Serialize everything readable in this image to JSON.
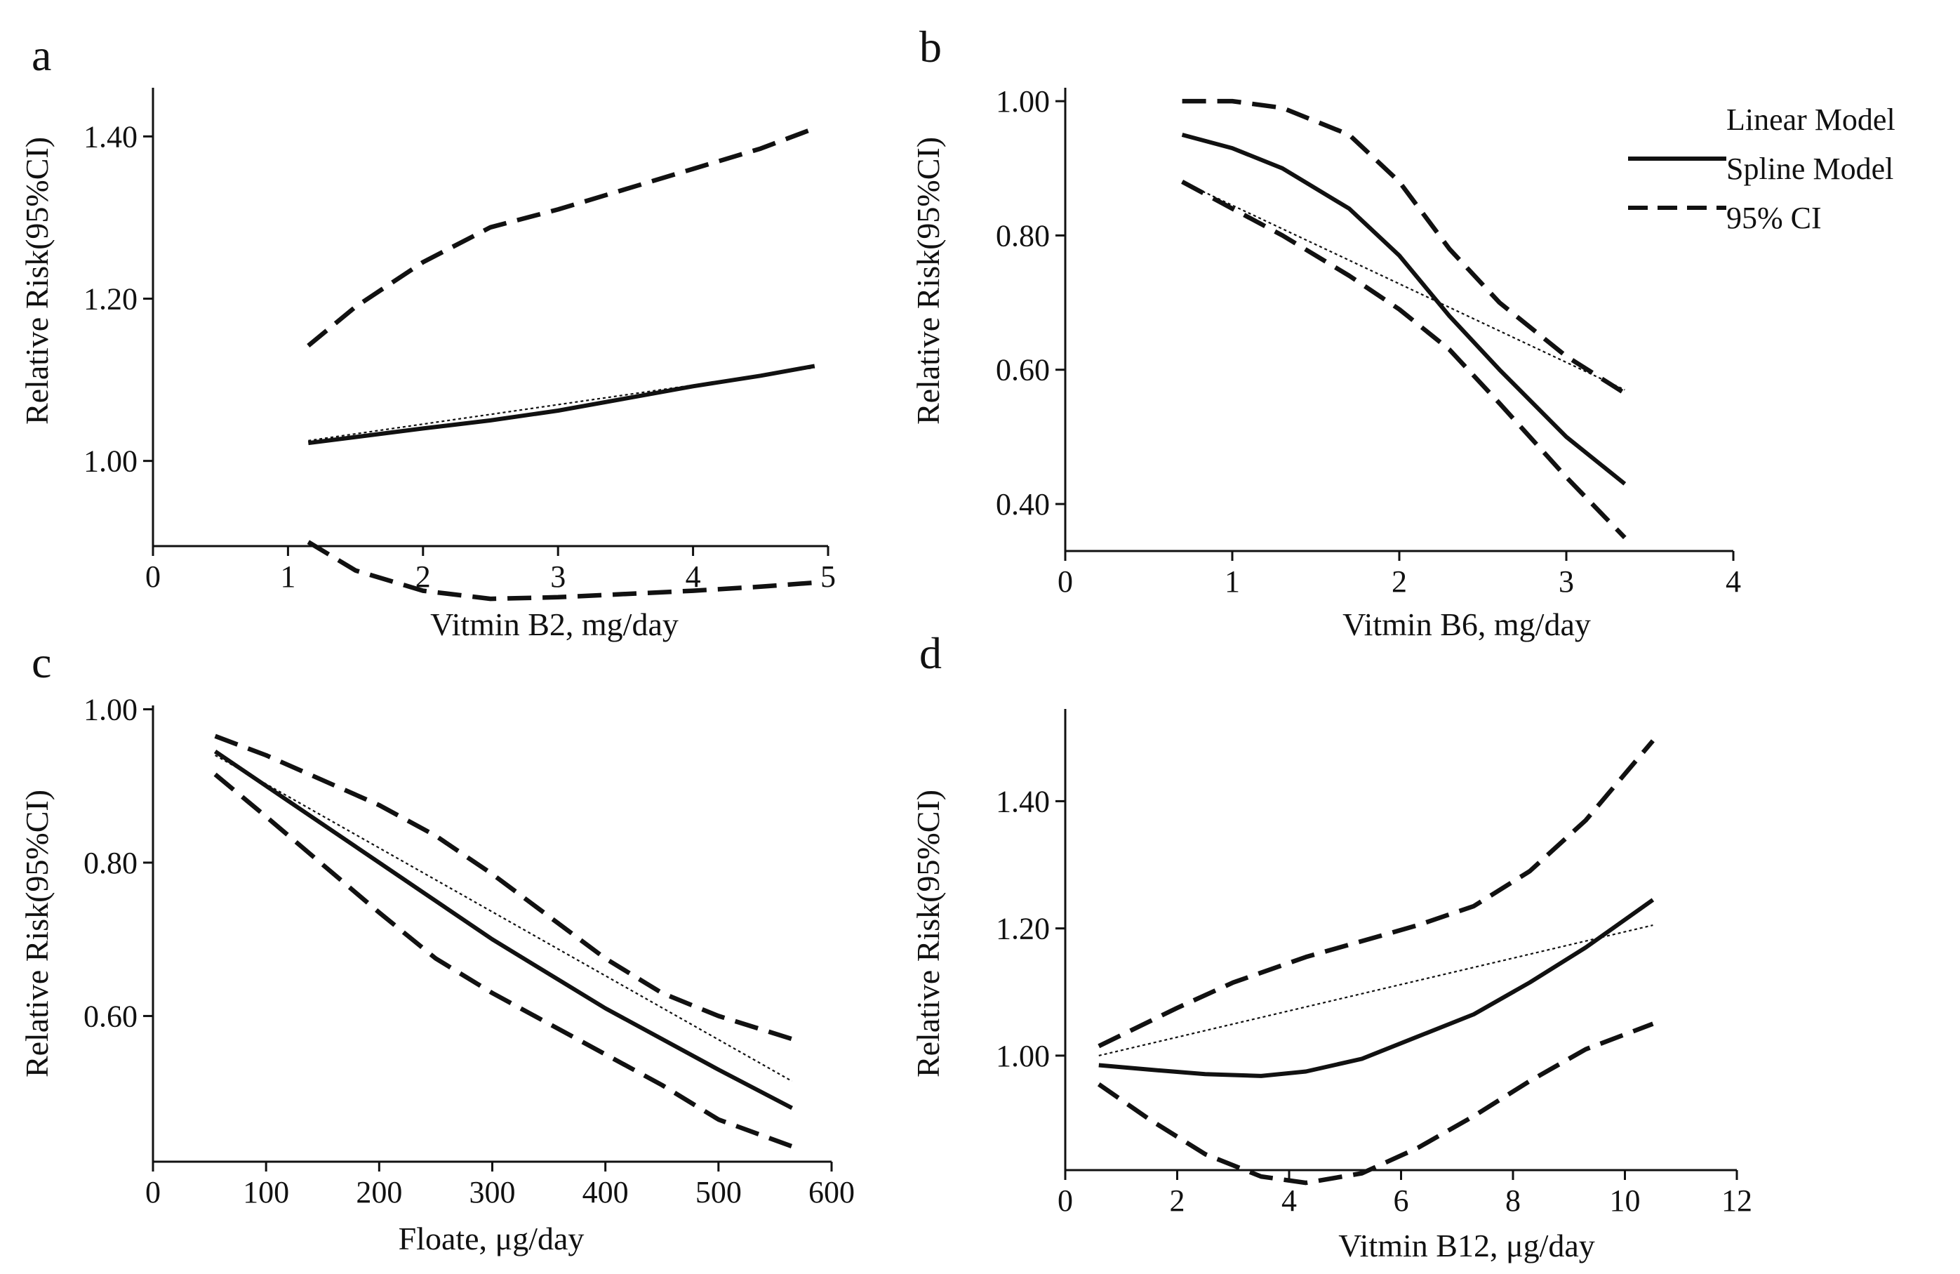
{
  "chart_data": [
    {
      "panel": "a",
      "type": "line",
      "xlabel": "Vitmin B2, mg/day",
      "ylabel": "Relative Risk(95%CI)",
      "xlim": [
        0,
        5
      ],
      "ylim": [
        0.895,
        1.46
      ],
      "xticks": [
        0,
        1,
        2,
        3,
        4,
        5
      ],
      "yticks": [
        1.0,
        1.2,
        1.4
      ],
      "ytick_labels": [
        "1.00",
        "1.20",
        "1.40"
      ],
      "series": [
        {
          "name": "Linear Model",
          "style": "dotted",
          "x": [
            1.15,
            4.9
          ],
          "y": [
            1.025,
            1.115
          ]
        },
        {
          "name": "Spline Model",
          "style": "solid",
          "x": [
            1.15,
            2.0,
            2.5,
            3.0,
            3.5,
            4.0,
            4.5,
            4.9
          ],
          "y": [
            1.022,
            1.04,
            1.05,
            1.062,
            1.077,
            1.092,
            1.105,
            1.117
          ]
        },
        {
          "name": "95% CI upper",
          "style": "dashed",
          "x": [
            1.15,
            1.5,
            2.0,
            2.5,
            3.0,
            3.5,
            4.0,
            4.5,
            4.9
          ],
          "y": [
            1.142,
            1.19,
            1.245,
            1.288,
            1.31,
            1.335,
            1.36,
            1.385,
            1.41
          ]
        },
        {
          "name": "95% CI lower",
          "style": "dashed",
          "x": [
            1.15,
            1.5,
            2.0,
            2.5,
            3.0,
            3.5,
            4.0,
            4.5,
            4.9
          ],
          "y": [
            0.9,
            0.865,
            0.84,
            0.83,
            0.832,
            0.836,
            0.84,
            0.845,
            0.85
          ]
        }
      ]
    },
    {
      "panel": "b",
      "type": "line",
      "xlabel": "Vitmin B6, mg/day",
      "ylabel": "Relative Risk(95%CI)",
      "xlim": [
        0,
        4
      ],
      "ylim": [
        0.33,
        1.02
      ],
      "xticks": [
        0,
        1,
        2,
        3,
        4
      ],
      "yticks": [
        0.4,
        0.6,
        0.8,
        1.0
      ],
      "ytick_labels": [
        "0.40",
        "0.60",
        "0.80",
        "1.00"
      ],
      "series": [
        {
          "name": "Linear Model",
          "style": "dotted",
          "x": [
            0.7,
            3.35
          ],
          "y": [
            0.88,
            0.57
          ]
        },
        {
          "name": "Spline Model",
          "style": "solid",
          "x": [
            0.7,
            1.0,
            1.3,
            1.7,
            2.0,
            2.3,
            2.6,
            3.0,
            3.35
          ],
          "y": [
            0.95,
            0.93,
            0.9,
            0.84,
            0.77,
            0.68,
            0.6,
            0.5,
            0.43
          ]
        },
        {
          "name": "95% CI upper",
          "style": "dashed",
          "x": [
            0.7,
            1.0,
            1.3,
            1.7,
            2.0,
            2.3,
            2.6,
            3.0,
            3.35
          ],
          "y": [
            1.0,
            1.0,
            0.99,
            0.95,
            0.88,
            0.78,
            0.7,
            0.62,
            0.565
          ]
        },
        {
          "name": "95% CI lower",
          "style": "dashed",
          "x": [
            0.7,
            1.0,
            1.3,
            1.7,
            2.0,
            2.3,
            2.6,
            3.0,
            3.35
          ],
          "y": [
            0.88,
            0.84,
            0.8,
            0.74,
            0.69,
            0.63,
            0.55,
            0.44,
            0.35
          ]
        }
      ]
    },
    {
      "panel": "c",
      "type": "line",
      "xlabel": "Floate, μg/day",
      "ylabel": "Relative Risk(95%CI)",
      "xlim": [
        0,
        600
      ],
      "ylim": [
        0.41,
        1.005
      ],
      "xticks": [
        0,
        100,
        200,
        300,
        400,
        500,
        600
      ],
      "yticks": [
        0.6,
        0.8,
        1.0
      ],
      "ytick_labels": [
        "0.60",
        "0.80",
        "1.00"
      ],
      "series": [
        {
          "name": "Linear Model",
          "style": "dotted",
          "x": [
            55,
            565
          ],
          "y": [
            0.94,
            0.515
          ]
        },
        {
          "name": "Spline Model",
          "style": "solid",
          "x": [
            55,
            100,
            200,
            300,
            400,
            500,
            565
          ],
          "y": [
            0.945,
            0.9,
            0.8,
            0.7,
            0.61,
            0.53,
            0.48
          ]
        },
        {
          "name": "95% CI upper",
          "style": "dashed",
          "x": [
            55,
            100,
            200,
            250,
            300,
            400,
            450,
            500,
            565
          ],
          "y": [
            0.965,
            0.94,
            0.875,
            0.835,
            0.785,
            0.675,
            0.63,
            0.6,
            0.57
          ]
        },
        {
          "name": "95% CI lower",
          "style": "dashed",
          "x": [
            55,
            100,
            200,
            250,
            300,
            400,
            450,
            500,
            565
          ],
          "y": [
            0.915,
            0.86,
            0.735,
            0.675,
            0.63,
            0.55,
            0.51,
            0.465,
            0.43
          ]
        }
      ]
    },
    {
      "panel": "d",
      "type": "line",
      "xlabel": "Vitmin B12, μg/day",
      "ylabel": "Relative Risk(95%CI)",
      "xlim": [
        0,
        12
      ],
      "ylim": [
        0.82,
        1.545
      ],
      "xticks": [
        0,
        2,
        4,
        6,
        8,
        10,
        12
      ],
      "yticks": [
        1.0,
        1.2,
        1.4
      ],
      "ytick_labels": [
        "1.00",
        "1.20",
        "1.40"
      ],
      "series": [
        {
          "name": "Linear Model",
          "style": "dotted",
          "x": [
            0.6,
            10.5
          ],
          "y": [
            1.0,
            1.205
          ]
        },
        {
          "name": "Spline Model",
          "style": "solid",
          "x": [
            0.6,
            1.5,
            2.5,
            3.5,
            4.3,
            5.3,
            6.3,
            7.3,
            8.3,
            9.3,
            10.5
          ],
          "y": [
            0.985,
            0.978,
            0.971,
            0.968,
            0.975,
            0.995,
            1.03,
            1.065,
            1.115,
            1.17,
            1.245
          ]
        },
        {
          "name": "95% CI upper",
          "style": "dashed",
          "x": [
            0.6,
            2.0,
            3.0,
            4.3,
            5.3,
            6.3,
            7.3,
            8.3,
            9.3,
            10.5
          ],
          "y": [
            1.015,
            1.075,
            1.115,
            1.155,
            1.18,
            1.205,
            1.235,
            1.29,
            1.37,
            1.495
          ]
        },
        {
          "name": "95% CI lower",
          "style": "dashed",
          "x": [
            0.6,
            1.5,
            2.5,
            3.5,
            4.3,
            5.3,
            6.3,
            7.3,
            8.3,
            9.3,
            10.5
          ],
          "y": [
            0.955,
            0.9,
            0.845,
            0.81,
            0.8,
            0.815,
            0.855,
            0.905,
            0.96,
            1.01,
            1.05
          ]
        }
      ]
    }
  ],
  "legend": {
    "entries": [
      {
        "label": "Linear Model",
        "style": "none"
      },
      {
        "label": "Spline Model",
        "style": "solid"
      },
      {
        "label": "95% CI",
        "style": "dashed"
      }
    ]
  }
}
